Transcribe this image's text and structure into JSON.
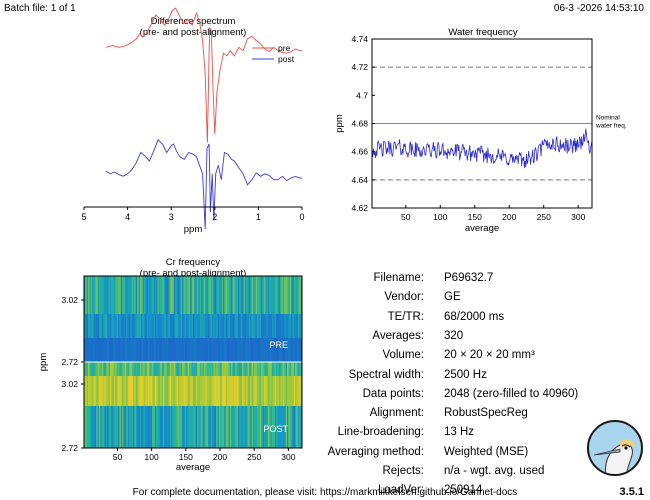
{
  "header": {
    "batch": "Batch file: 1 of 1",
    "datetime": "06-3 -2026 14:53:10"
  },
  "chart_data": [
    {
      "type": "line",
      "title": "Difference spectrum",
      "subtitle": "(pre- and post-alignment)",
      "xlabel": "ppm",
      "ylabel": "",
      "xlim": [
        5,
        0
      ],
      "xticks": [
        "5",
        "4",
        "3",
        "2",
        "1",
        "0"
      ],
      "legend": {
        "placement": "top-right",
        "entries": [
          "pre",
          "post"
        ]
      },
      "series": [
        {
          "name": "pre",
          "color": "#e8504a",
          "x": [
            4.5,
            4.35,
            4.2,
            4.1,
            4.0,
            3.9,
            3.8,
            3.72,
            3.65,
            3.55,
            3.45,
            3.35,
            3.25,
            3.15,
            3.05,
            2.98,
            2.9,
            2.82,
            2.72,
            2.62,
            2.52,
            2.42,
            2.35,
            2.28,
            2.22,
            2.17,
            2.12,
            2.08,
            2.04,
            2.0,
            1.95,
            1.88,
            1.8,
            1.72,
            1.65,
            1.55,
            1.45,
            1.35,
            1.25,
            1.15,
            1.05,
            0.95,
            0.85,
            0.75,
            0.65,
            0.55,
            0.45,
            0.35,
            0.25,
            0.15,
            0.05,
            0.0
          ],
          "y": [
            0.62,
            0.64,
            0.62,
            0.63,
            0.65,
            0.68,
            0.72,
            0.78,
            0.74,
            0.8,
            0.9,
            1.0,
            0.95,
            0.88,
            0.96,
            1.05,
            1.08,
            1.0,
            0.9,
            0.95,
            0.88,
            1.02,
            0.92,
            0.7,
            0.3,
            -0.5,
            0.85,
            0.82,
            0.1,
            -0.4,
            0.1,
            0.35,
            0.55,
            0.52,
            0.58,
            0.52,
            0.62,
            0.58,
            0.72,
            0.75,
            0.7,
            0.66,
            0.6,
            0.57,
            0.62,
            0.58,
            0.56,
            0.55,
            0.57,
            0.6,
            0.58,
            0.58
          ]
        },
        {
          "name": "post",
          "color": "#3b3bd6",
          "x": [
            4.5,
            4.4,
            4.3,
            4.2,
            4.1,
            4.0,
            3.9,
            3.8,
            3.7,
            3.6,
            3.5,
            3.4,
            3.3,
            3.2,
            3.1,
            3.0,
            2.95,
            2.88,
            2.8,
            2.7,
            2.6,
            2.5,
            2.42,
            2.35,
            2.28,
            2.22,
            2.18,
            2.13,
            2.1,
            2.06,
            2.02,
            1.98,
            1.92,
            1.85,
            1.78,
            1.7,
            1.62,
            1.55,
            1.45,
            1.35,
            1.25,
            1.15,
            1.05,
            0.95,
            0.85,
            0.75,
            0.65,
            0.55,
            0.45,
            0.35,
            0.25,
            0.15,
            0.05,
            0.0
          ],
          "y": [
            0.08,
            0.05,
            0.07,
            0.04,
            0.02,
            0.05,
            0.1,
            0.18,
            0.3,
            0.26,
            0.2,
            0.32,
            0.45,
            0.4,
            0.3,
            0.38,
            0.4,
            0.32,
            0.25,
            0.22,
            0.3,
            0.28,
            0.25,
            0.15,
            0.05,
            -0.6,
            0.35,
            0.4,
            -0.4,
            0.05,
            -0.5,
            0.05,
            0.15,
            -0.02,
            0.3,
            0.28,
            0.22,
            0.2,
            0.12,
            0.05,
            -0.08,
            -0.02,
            0.06,
            0.02,
            0.05,
            0.03,
            -0.02,
            -0.02,
            0.02,
            -0.03,
            0.0,
            0.02,
            0.0,
            0.0
          ]
        }
      ]
    },
    {
      "type": "line",
      "title": "Water frequency",
      "xlabel": "average",
      "ylabel": "ppm",
      "xlim": [
        1,
        320
      ],
      "ylim": [
        4.62,
        4.74
      ],
      "xticks": [
        50,
        100,
        150,
        200,
        250,
        300
      ],
      "yticks": [
        "4.62",
        "4.64",
        "4.66",
        "4.68",
        "4.7",
        "4.72",
        "4.74"
      ],
      "reference_lines": [
        {
          "y": 4.68,
          "style": "solid",
          "label_line1": "Nominal",
          "label_line2": "water freq."
        },
        {
          "y": 4.72,
          "style": "dashed"
        },
        {
          "y": 4.64,
          "style": "dashed"
        }
      ],
      "series": [
        {
          "name": "water frequency",
          "color": "#2b2bd0",
          "x": [
            1,
            20,
            40,
            60,
            80,
            100,
            120,
            140,
            160,
            180,
            200,
            210,
            220,
            230,
            240,
            250,
            260,
            270,
            280,
            290,
            300,
            305,
            310,
            315,
            320
          ],
          "y": [
            4.661,
            4.662,
            4.663,
            4.661,
            4.661,
            4.661,
            4.66,
            4.659,
            4.658,
            4.657,
            4.655,
            4.654,
            4.654,
            4.655,
            4.658,
            4.664,
            4.666,
            4.665,
            4.664,
            4.664,
            4.666,
            4.667,
            4.672,
            4.665,
            4.662
          ]
        }
      ]
    },
    {
      "type": "heatmap",
      "title": "Cr frequency",
      "subtitle": "(pre- and post-alignment)",
      "xlabel": "average",
      "ylabel": "ppm",
      "xlim": [
        1,
        320
      ],
      "xticks": [
        50,
        100,
        150,
        200,
        250,
        300
      ],
      "panels": [
        {
          "label": "PRE",
          "yticks": [
            "3.02",
            "2.72"
          ]
        },
        {
          "label": "POST",
          "yticks": [
            "3.02",
            "2.72"
          ]
        }
      ]
    }
  ],
  "info": [
    {
      "label": "Filename:",
      "value": "P69632.7"
    },
    {
      "label": "Vendor:",
      "value": "GE"
    },
    {
      "label": "TE/TR:",
      "value": "68/2000 ms"
    },
    {
      "label": "Averages:",
      "value": "320"
    },
    {
      "label": "Volume:",
      "value": "20 × 20 × 20 mm³"
    },
    {
      "label": "Spectral width:",
      "value": "2500 Hz"
    },
    {
      "label": "Data points:",
      "value": "2048 (zero-filled to 40960)"
    },
    {
      "label": "Alignment:",
      "value": "RobustSpecReg"
    },
    {
      "label": "Line-broadening:",
      "value": "13 Hz"
    },
    {
      "label": "Averaging method:",
      "value": "Weighted (MSE)"
    },
    {
      "label": "Rejects:",
      "value": "n/a - wgt. avg. used"
    },
    {
      "label": "LoadVer:",
      "value": "250914"
    }
  ],
  "footer": {
    "doc_text": "For complete documentation, please visit: https://markmikkelsen.github.io/Gannet-docs",
    "version": "3.5.1"
  }
}
